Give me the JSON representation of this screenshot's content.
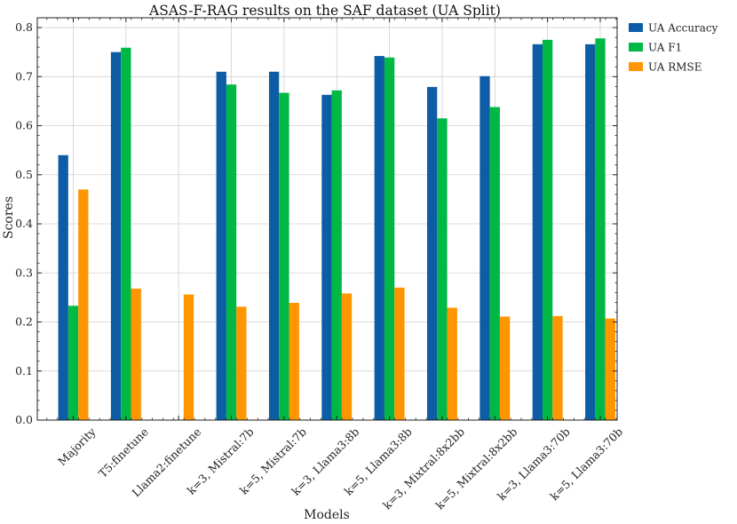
{
  "chart_data": {
    "type": "bar",
    "title": "ASAS-F-RAG results on the SAF dataset (UA Split)",
    "xlabel": "Models",
    "ylabel": "Scores",
    "ylim": [
      0,
      0.82
    ],
    "yticks": [
      "0.0",
      "0.1",
      "0.2",
      "0.3",
      "0.4",
      "0.5",
      "0.6",
      "0.7",
      "0.8"
    ],
    "grid": true,
    "legend_position": "outside-top-right",
    "categories": [
      "Majority",
      "T5:finetune",
      "Llama2:finetune",
      "k=3, Mistral:7b",
      "k=5, Mistral:7b",
      "k=3, Llama3:8b",
      "k=5, Llama3:8b",
      "k=3, Mixtral:8x2bb",
      "k=5, Mixtral:8x2bb",
      "k=3, Llama3:70b",
      "k=5, Llama3:70b"
    ],
    "series": [
      {
        "name": "UA Accuracy",
        "color": "#0C5DA5",
        "values": [
          0.54,
          0.75,
          null,
          0.71,
          0.71,
          0.663,
          0.742,
          0.679,
          0.701,
          0.766,
          0.766
        ]
      },
      {
        "name": "UA F1",
        "color": "#00B945",
        "values": [
          0.233,
          0.759,
          null,
          0.684,
          0.667,
          0.672,
          0.739,
          0.615,
          0.638,
          0.775,
          0.778
        ]
      },
      {
        "name": "UA RMSE",
        "color": "#FF9500",
        "values": [
          0.47,
          0.268,
          0.256,
          0.231,
          0.239,
          0.258,
          0.27,
          0.229,
          0.211,
          0.212,
          0.207
        ]
      }
    ]
  }
}
